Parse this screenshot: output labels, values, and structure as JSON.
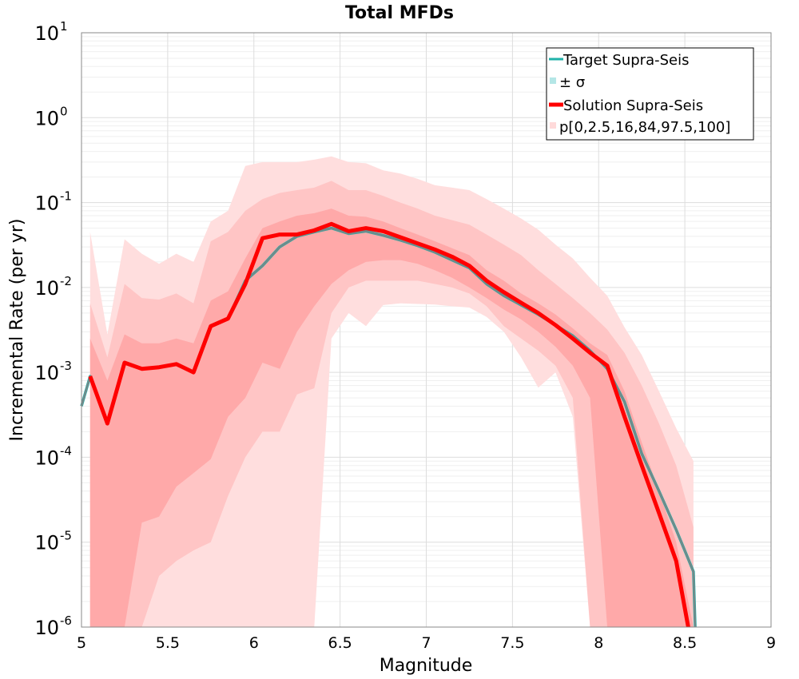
{
  "chart_data": {
    "type": "line",
    "title": "Total MFDs",
    "xlabel": "Magnitude",
    "ylabel": "Incremental Rate (per yr)",
    "xlim": [
      5,
      9
    ],
    "ylim": [
      1e-06,
      10
    ],
    "yscale": "log",
    "grid": true,
    "legend_position": "top-right",
    "x_ticks": [
      5,
      5.5,
      6,
      6.5,
      7,
      7.5,
      8,
      8.5,
      9
    ],
    "x_tick_labels": [
      "5",
      "5.5",
      "6",
      "6.5",
      "7",
      "7.5",
      "8",
      "8.5",
      "9"
    ],
    "y_ticks": [
      {
        "value": 1e-06,
        "base": "10",
        "exp": "-6"
      },
      {
        "value": 1e-05,
        "base": "10",
        "exp": "-5"
      },
      {
        "value": 0.0001,
        "base": "10",
        "exp": "-4"
      },
      {
        "value": 0.001,
        "base": "10",
        "exp": "-3"
      },
      {
        "value": 0.01,
        "base": "10",
        "exp": "-2"
      },
      {
        "value": 0.1,
        "base": "10",
        "exp": "-1"
      },
      {
        "value": 1,
        "base": "10",
        "exp": "0"
      },
      {
        "value": 10,
        "base": "10",
        "exp": "1"
      }
    ],
    "legend": [
      {
        "label": "Target Supra-Seis",
        "kind": "line",
        "color": "#20b2aa"
      },
      {
        "label": "± σ",
        "kind": "box",
        "color": "#b4e6e6"
      },
      {
        "label": "Solution Supra-Seis",
        "kind": "line",
        "color": "#ff0000"
      },
      {
        "label": "p[0,2.5,16,84,97.5,100]",
        "kind": "box",
        "color": "#ffdada"
      }
    ],
    "colors": {
      "target": "#20b2aa",
      "target_sigma": "#708a8a",
      "solution": "#ff0000",
      "band_outer": "#ffdede",
      "band_middle": "#ffc5c5",
      "band_inner": "#ffa9a9"
    },
    "series": [
      {
        "name": "Target Supra-Seis",
        "x": [
          5.0,
          5.05,
          5.15,
          5.25,
          5.35,
          5.45,
          5.55,
          5.65,
          5.75,
          5.85,
          5.95,
          6.05,
          6.15,
          6.25,
          6.35,
          6.45,
          6.55,
          6.65,
          6.75,
          6.85,
          6.95,
          7.05,
          7.15,
          7.25,
          7.35,
          7.45,
          7.55,
          7.65,
          7.75,
          7.85,
          7.95,
          8.05,
          8.15,
          8.25,
          8.35,
          8.45,
          8.55,
          8.56
        ],
        "values": [
          0.0004,
          0.0009,
          0.00025,
          0.0013,
          0.0011,
          0.00115,
          0.00125,
          0.001,
          0.0035,
          0.0043,
          0.012,
          0.018,
          0.03,
          0.04,
          0.045,
          0.05,
          0.043,
          0.046,
          0.041,
          0.036,
          0.031,
          0.026,
          0.021,
          0.017,
          0.011,
          0.008,
          0.0062,
          0.0048,
          0.0036,
          0.0027,
          0.0018,
          0.0011,
          0.00045,
          0.00011,
          4e-05,
          1.4e-05,
          4.5e-06,
          1e-06
        ]
      },
      {
        "name": "Solution Supra-Seis",
        "x": [
          5.05,
          5.15,
          5.25,
          5.35,
          5.45,
          5.55,
          5.65,
          5.75,
          5.85,
          5.95,
          6.05,
          6.15,
          6.25,
          6.35,
          6.45,
          6.55,
          6.65,
          6.75,
          6.85,
          6.95,
          7.05,
          7.15,
          7.25,
          7.35,
          7.45,
          7.55,
          7.65,
          7.75,
          7.85,
          7.95,
          8.05,
          8.15,
          8.25,
          8.35,
          8.45,
          8.52
        ],
        "values": [
          0.0009,
          0.00025,
          0.0013,
          0.0011,
          0.00115,
          0.00125,
          0.001,
          0.0035,
          0.0043,
          0.011,
          0.038,
          0.042,
          0.042,
          0.047,
          0.056,
          0.046,
          0.05,
          0.046,
          0.039,
          0.033,
          0.028,
          0.023,
          0.018,
          0.012,
          0.0088,
          0.0066,
          0.005,
          0.0036,
          0.0025,
          0.0017,
          0.0012,
          0.0003,
          8e-05,
          2.2e-05,
          6e-06,
          1e-06
        ]
      }
    ],
    "bands": [
      {
        "name": "p0-p100",
        "x": [
          5.05,
          5.15,
          5.25,
          5.35,
          5.45,
          5.55,
          5.65,
          5.75,
          5.85,
          5.95,
          6.05,
          6.15,
          6.25,
          6.35,
          6.45,
          6.55,
          6.65,
          6.75,
          6.85,
          6.95,
          7.05,
          7.15,
          7.25,
          7.35,
          7.45,
          7.55,
          7.65,
          7.75,
          7.85,
          7.95,
          8.05,
          8.15,
          8.25,
          8.35,
          8.45,
          8.55
        ],
        "upper": [
          0.045,
          0.0028,
          0.037,
          0.025,
          0.019,
          0.025,
          0.02,
          0.06,
          0.08,
          0.27,
          0.3,
          0.3,
          0.3,
          0.32,
          0.35,
          0.3,
          0.29,
          0.24,
          0.22,
          0.19,
          0.16,
          0.15,
          0.14,
          0.11,
          0.085,
          0.065,
          0.048,
          0.032,
          0.022,
          0.013,
          0.008,
          0.0034,
          0.0016,
          0.0006,
          0.00022,
          9e-05
        ],
        "lower": [
          1e-06,
          1e-06,
          1e-06,
          1e-06,
          1e-06,
          1e-06,
          1e-06,
          1e-06,
          1e-06,
          1e-06,
          1e-06,
          1e-06,
          1e-06,
          1e-06,
          0.0025,
          0.005,
          0.0035,
          0.0062,
          0.0065,
          0.0064,
          0.0063,
          0.006,
          0.0058,
          0.0045,
          0.003,
          0.0015,
          0.00066,
          0.001,
          0.0003,
          1e-06,
          1e-06,
          1e-06,
          1e-06,
          1e-06,
          1e-06,
          1e-06
        ]
      },
      {
        "name": "p2.5-p97.5",
        "x": [
          5.05,
          5.15,
          5.25,
          5.35,
          5.45,
          5.55,
          5.65,
          5.75,
          5.85,
          5.95,
          6.05,
          6.15,
          6.25,
          6.35,
          6.45,
          6.55,
          6.65,
          6.75,
          6.85,
          6.95,
          7.05,
          7.15,
          7.25,
          7.35,
          7.45,
          7.55,
          7.65,
          7.75,
          7.85,
          7.95,
          8.05,
          8.15,
          8.25,
          8.35,
          8.45,
          8.55
        ],
        "upper": [
          0.0065,
          0.0015,
          0.011,
          0.0075,
          0.0072,
          0.0085,
          0.0065,
          0.035,
          0.045,
          0.08,
          0.11,
          0.13,
          0.14,
          0.15,
          0.18,
          0.14,
          0.14,
          0.12,
          0.1,
          0.085,
          0.07,
          0.062,
          0.055,
          0.042,
          0.032,
          0.024,
          0.016,
          0.011,
          0.0075,
          0.005,
          0.0032,
          0.0017,
          0.0007,
          0.00025,
          8e-05,
          1.5e-05
        ],
        "lower": [
          1e-06,
          1e-06,
          1e-06,
          1e-06,
          4e-06,
          6e-06,
          8e-06,
          1e-05,
          3.5e-05,
          0.0001,
          0.0002,
          0.0002,
          0.00055,
          0.00065,
          0.005,
          0.01,
          0.012,
          0.012,
          0.012,
          0.012,
          0.011,
          0.01,
          0.0085,
          0.006,
          0.0035,
          0.0025,
          0.0018,
          0.0012,
          0.0005,
          1e-06,
          1e-06,
          1e-06,
          1e-06,
          1e-06,
          1e-06,
          1e-06
        ]
      },
      {
        "name": "p16-p84",
        "x": [
          5.05,
          5.15,
          5.25,
          5.35,
          5.45,
          5.55,
          5.65,
          5.75,
          5.85,
          5.95,
          6.05,
          6.15,
          6.25,
          6.35,
          6.45,
          6.55,
          6.65,
          6.75,
          6.85,
          6.95,
          7.05,
          7.15,
          7.25,
          7.35,
          7.45,
          7.55,
          7.65,
          7.75,
          7.85,
          7.95,
          8.05,
          8.15,
          8.25,
          8.35,
          8.45,
          8.55
        ],
        "upper": [
          0.0025,
          0.0008,
          0.0028,
          0.0022,
          0.0022,
          0.0025,
          0.0022,
          0.007,
          0.009,
          0.022,
          0.05,
          0.06,
          0.07,
          0.075,
          0.085,
          0.07,
          0.068,
          0.06,
          0.05,
          0.042,
          0.035,
          0.029,
          0.024,
          0.016,
          0.012,
          0.0085,
          0.0065,
          0.0048,
          0.0033,
          0.0022,
          0.0016,
          0.0006,
          0.00015,
          4e-05,
          1e-05,
          1e-06
        ],
        "lower": [
          1e-06,
          1e-06,
          1e-06,
          1.7e-05,
          2e-05,
          4.5e-05,
          6.5e-05,
          9.5e-05,
          0.0003,
          0.0005,
          0.0013,
          0.0011,
          0.003,
          0.006,
          0.011,
          0.016,
          0.02,
          0.021,
          0.021,
          0.019,
          0.016,
          0.013,
          0.01,
          0.0075,
          0.0055,
          0.0042,
          0.003,
          0.002,
          0.0012,
          0.0005,
          1e-06,
          1e-06,
          1e-06,
          1e-06,
          1e-06,
          1e-06
        ]
      }
    ]
  }
}
